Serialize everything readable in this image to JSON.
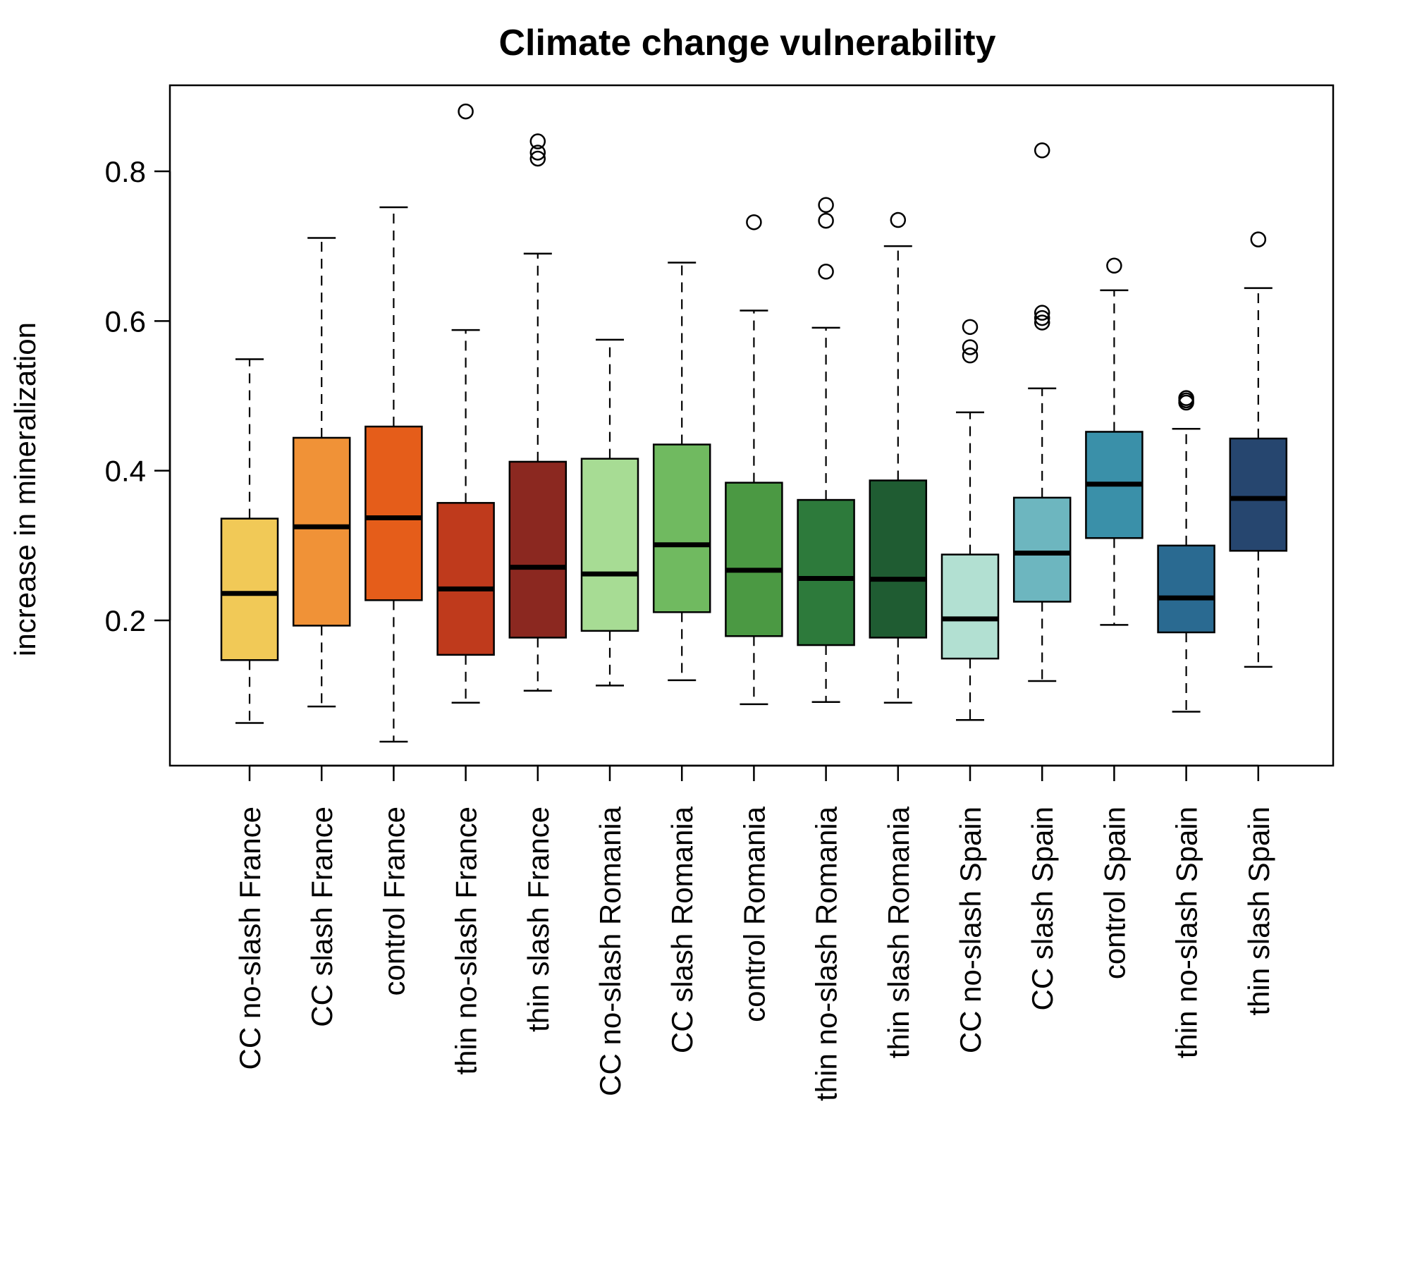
{
  "chart_data": {
    "type": "boxplot",
    "title": "Climate change vulnerability",
    "xlabel": "",
    "ylabel": "increase in mineralization",
    "ylim": [
      0.0,
      0.91
    ],
    "yticks": [
      0.2,
      0.4,
      0.6,
      0.8
    ],
    "ytick_labels": [
      "0.2",
      "0.4",
      "0.6",
      "0.8"
    ],
    "grid": false,
    "categories": [
      "CC no-slash France",
      "CC slash France",
      "control France",
      "thin no-slash France",
      "thin slash France",
      "CC no-slash Romania",
      "CC slash Romania",
      "control Romania",
      "thin no-slash Romania",
      "thin slash Romania",
      "CC no-slash Spain",
      "CC slash Spain",
      "control Spain",
      "thin no-slash Spain",
      "thin slash Spain"
    ],
    "boxes": [
      {
        "whisker_low": 0.063,
        "q1": 0.147,
        "median": 0.236,
        "q3": 0.336,
        "whisker_high": 0.549,
        "outliers": [],
        "color": "#F1C957"
      },
      {
        "whisker_low": 0.085,
        "q1": 0.193,
        "median": 0.325,
        "q3": 0.444,
        "whisker_high": 0.711,
        "outliers": [],
        "color": "#F09237"
      },
      {
        "whisker_low": 0.038,
        "q1": 0.227,
        "median": 0.337,
        "q3": 0.459,
        "whisker_high": 0.752,
        "outliers": [],
        "color": "#E55D1A"
      },
      {
        "whisker_low": 0.09,
        "q1": 0.154,
        "median": 0.242,
        "q3": 0.357,
        "whisker_high": 0.588,
        "outliers": [
          0.88
        ],
        "color": "#BF3A1C"
      },
      {
        "whisker_low": 0.106,
        "q1": 0.177,
        "median": 0.271,
        "q3": 0.412,
        "whisker_high": 0.69,
        "outliers": [
          0.84,
          0.825,
          0.817
        ],
        "color": "#8B2820"
      },
      {
        "whisker_low": 0.113,
        "q1": 0.186,
        "median": 0.262,
        "q3": 0.416,
        "whisker_high": 0.575,
        "outliers": [],
        "color": "#A7DC94"
      },
      {
        "whisker_low": 0.12,
        "q1": 0.211,
        "median": 0.301,
        "q3": 0.435,
        "whisker_high": 0.678,
        "outliers": [],
        "color": "#70BA60"
      },
      {
        "whisker_low": 0.088,
        "q1": 0.179,
        "median": 0.267,
        "q3": 0.384,
        "whisker_high": 0.614,
        "outliers": [
          0.732
        ],
        "color": "#4B9943"
      },
      {
        "whisker_low": 0.091,
        "q1": 0.167,
        "median": 0.256,
        "q3": 0.361,
        "whisker_high": 0.591,
        "outliers": [
          0.755,
          0.734,
          0.666
        ],
        "color": "#2D7A3B"
      },
      {
        "whisker_low": 0.09,
        "q1": 0.177,
        "median": 0.255,
        "q3": 0.387,
        "whisker_high": 0.7,
        "outliers": [
          0.735
        ],
        "color": "#1F5C32"
      },
      {
        "whisker_low": 0.067,
        "q1": 0.149,
        "median": 0.202,
        "q3": 0.288,
        "whisker_high": 0.478,
        "outliers": [
          0.592,
          0.565,
          0.554
        ],
        "color": "#B2E0D2"
      },
      {
        "whisker_low": 0.119,
        "q1": 0.225,
        "median": 0.29,
        "q3": 0.364,
        "whisker_high": 0.51,
        "outliers": [
          0.828,
          0.611,
          0.604,
          0.598
        ],
        "color": "#6DB6BF"
      },
      {
        "whisker_low": 0.194,
        "q1": 0.31,
        "median": 0.382,
        "q3": 0.452,
        "whisker_high": 0.641,
        "outliers": [
          0.674
        ],
        "color": "#3A90A9"
      },
      {
        "whisker_low": 0.078,
        "q1": 0.184,
        "median": 0.23,
        "q3": 0.3,
        "whisker_high": 0.456,
        "outliers": [
          0.497,
          0.494,
          0.491
        ],
        "color": "#2A6A91"
      },
      {
        "whisker_low": 0.138,
        "q1": 0.293,
        "median": 0.363,
        "q3": 0.443,
        "whisker_high": 0.644,
        "outliers": [
          0.709
        ],
        "color": "#26466F"
      }
    ]
  }
}
